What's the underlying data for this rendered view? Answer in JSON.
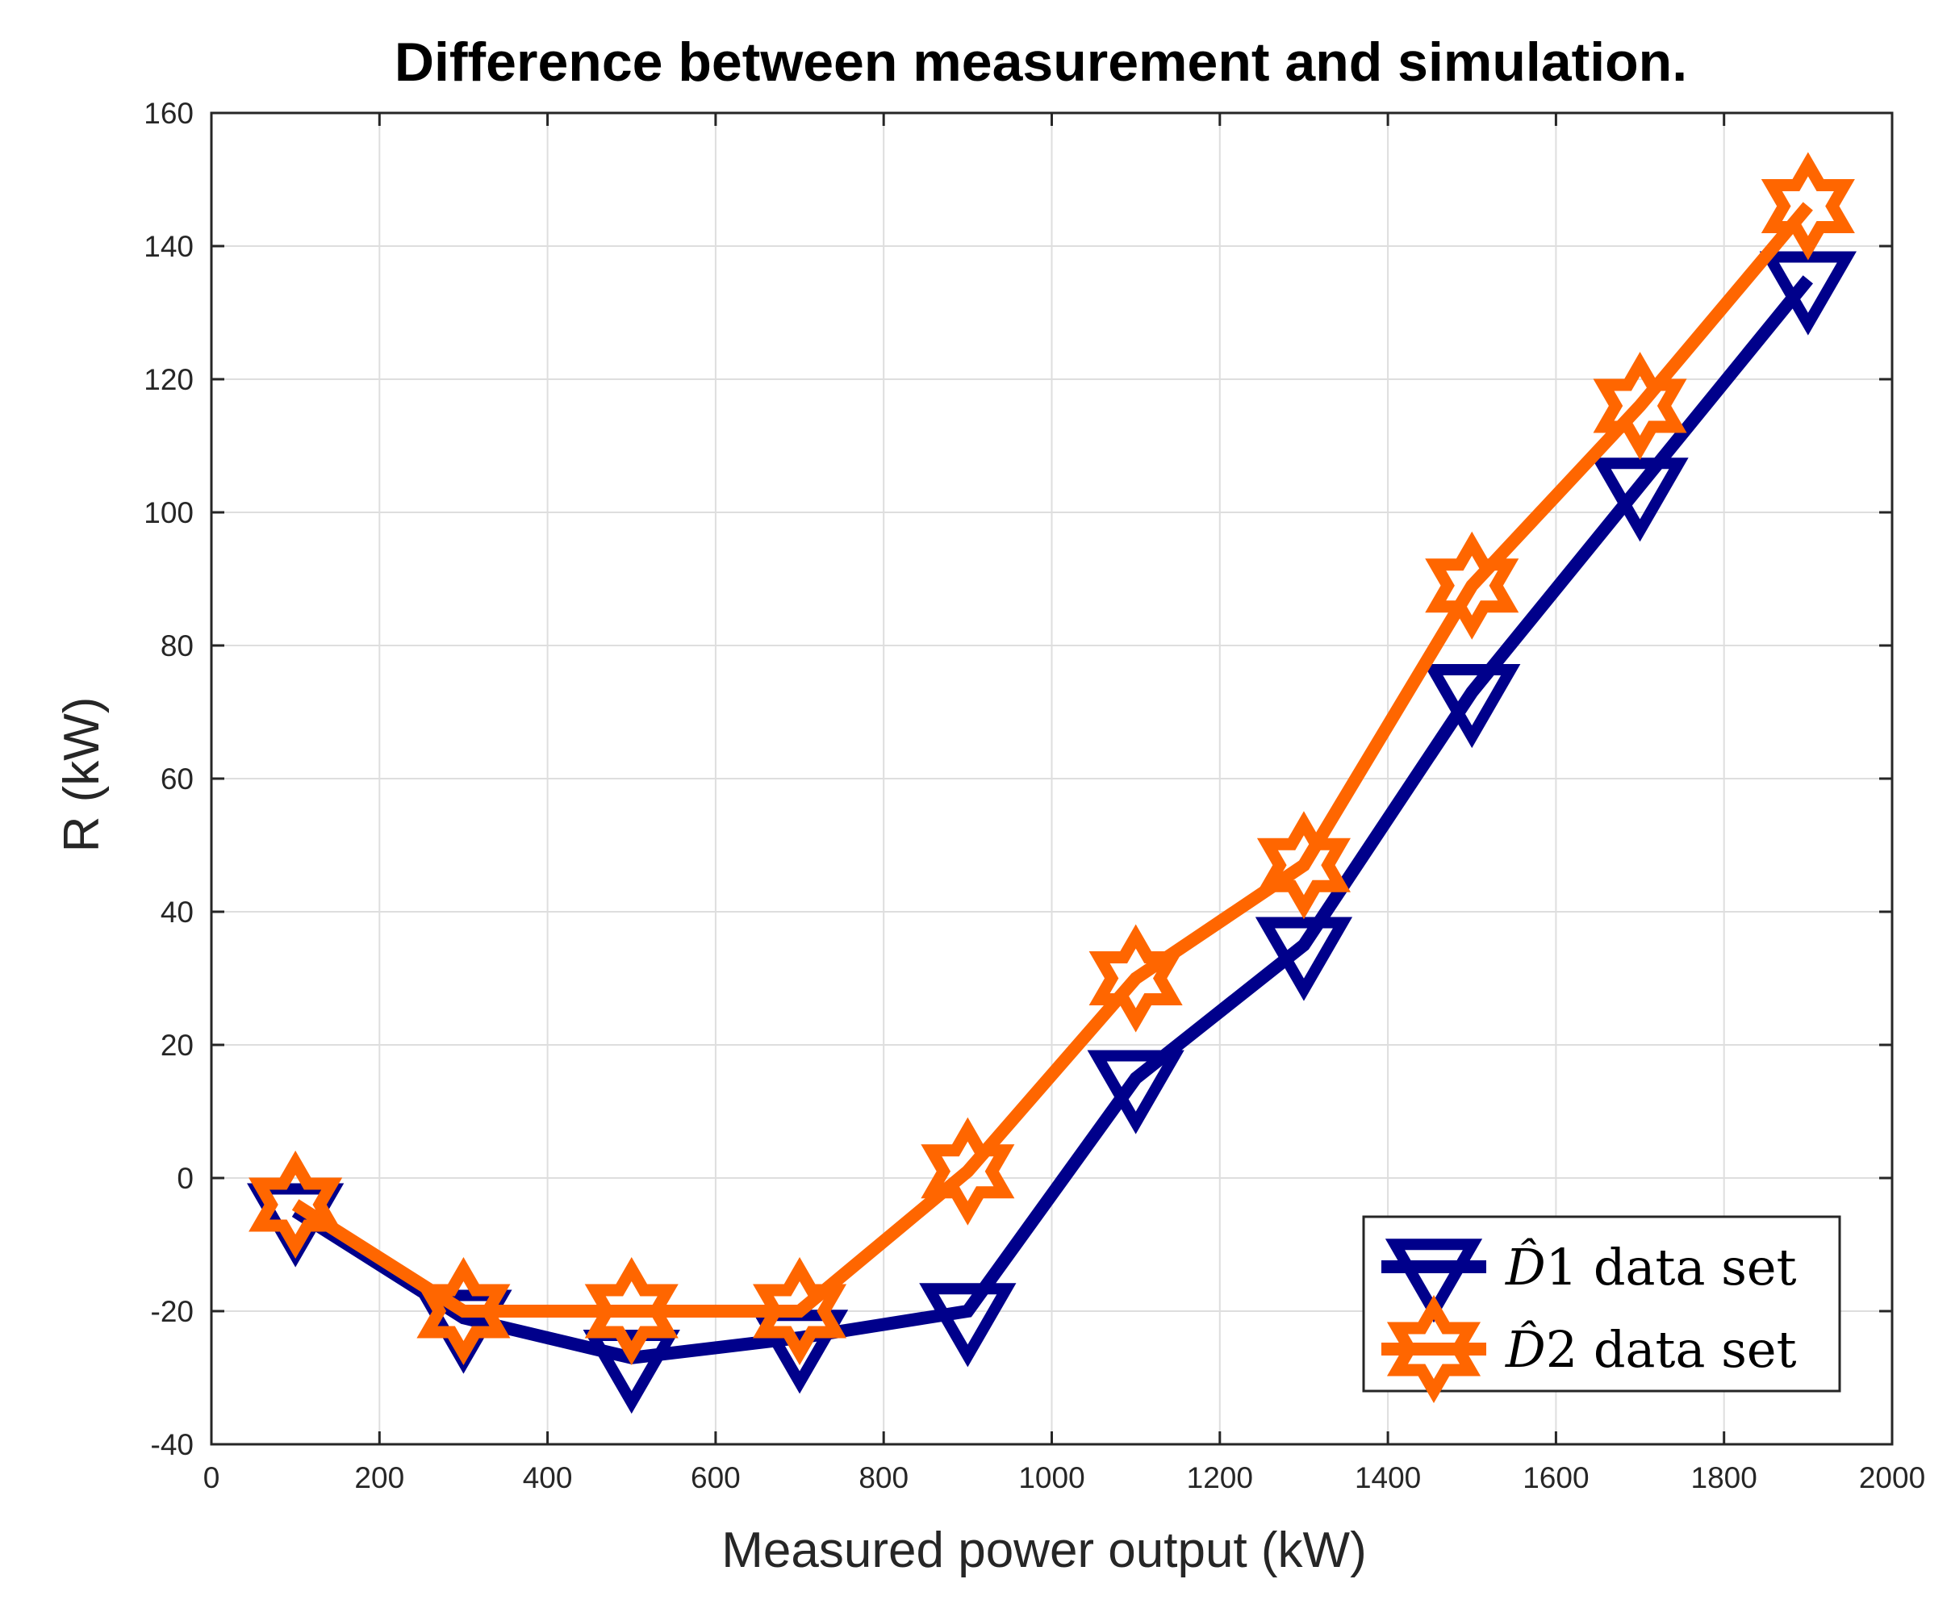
{
  "chart_data": {
    "type": "line",
    "title": "Difference between measurement and simulation.",
    "xlabel": "Measured power output (kW)",
    "ylabel": "R (kW)",
    "xlim": [
      0,
      2000
    ],
    "ylim": [
      -40,
      160
    ],
    "xticks": [
      "0",
      "200",
      "400",
      "600",
      "800",
      "1000",
      "1200",
      "1400",
      "1600",
      "1800",
      "2000"
    ],
    "yticks": [
      "-40",
      "-20",
      "0",
      "20",
      "40",
      "60",
      "80",
      "100",
      "120",
      "140",
      "160"
    ],
    "grid": true,
    "legend_position": "bottom-right",
    "x": [
      100,
      300,
      500,
      700,
      900,
      1100,
      1300,
      1500,
      1700,
      1900
    ],
    "series": [
      {
        "name": "D̂1 data set",
        "legend_symbol": "D̂",
        "legend_rest": "1 data set",
        "color": "#00008B",
        "marker": "triangle-down",
        "values": [
          -5,
          -21,
          -27,
          -24,
          -20,
          15,
          35,
          73,
          104,
          135
        ]
      },
      {
        "name": "D̂2 data set",
        "legend_symbol": "D̂",
        "legend_rest": "2 data set",
        "color": "#FF6600",
        "marker": "hexagram",
        "values": [
          -4,
          -20,
          -20,
          -20,
          1,
          30,
          47,
          89,
          116,
          146
        ]
      }
    ]
  }
}
